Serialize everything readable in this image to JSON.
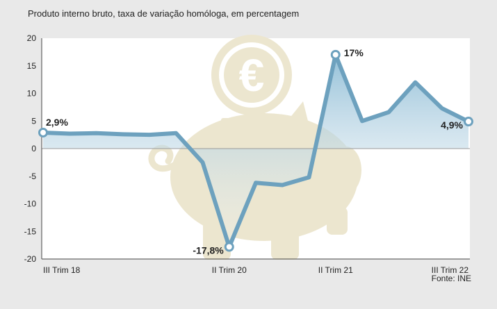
{
  "chart_data": {
    "type": "area",
    "title": "Produto interno bruto, taxa de variação homóloga, em percentagem",
    "source": "Fonte: INE",
    "ylim": [
      -20,
      20
    ],
    "yticks": [
      20,
      15,
      10,
      5,
      0,
      -5,
      -10,
      -15,
      -20
    ],
    "x_count": 17,
    "xtick_labels": [
      {
        "index": 0,
        "label": "III Trim 18"
      },
      {
        "index": 7,
        "label": "II Trim 20"
      },
      {
        "index": 11,
        "label": "II Trim 21"
      },
      {
        "index": 16,
        "label": "III Trim 22"
      }
    ],
    "series": [
      {
        "values": [
          2.9,
          2.7,
          2.8,
          2.6,
          2.5,
          2.8,
          -2.5,
          -17.8,
          -6.2,
          -6.6,
          -5.2,
          17,
          5,
          6.6,
          12,
          7.3,
          4.9
        ]
      }
    ],
    "annotations": [
      {
        "index": 0,
        "text": "2,9%",
        "pos": "above-right"
      },
      {
        "index": 7,
        "text": "-17,8%",
        "pos": "left"
      },
      {
        "index": 11,
        "text": "17%",
        "pos": "right"
      },
      {
        "index": 16,
        "text": "4,9%",
        "pos": "left"
      }
    ],
    "grid": false,
    "colors": {
      "line": "#6da1be",
      "area_top": "#8ebdd6",
      "area_bottom": "#f4f6f8",
      "plot_bg": "#ffffff",
      "page_bg": "#e9e9e9",
      "decoration": "#ece6cf"
    },
    "decoration": "piggy-bank-euro-icon"
  }
}
